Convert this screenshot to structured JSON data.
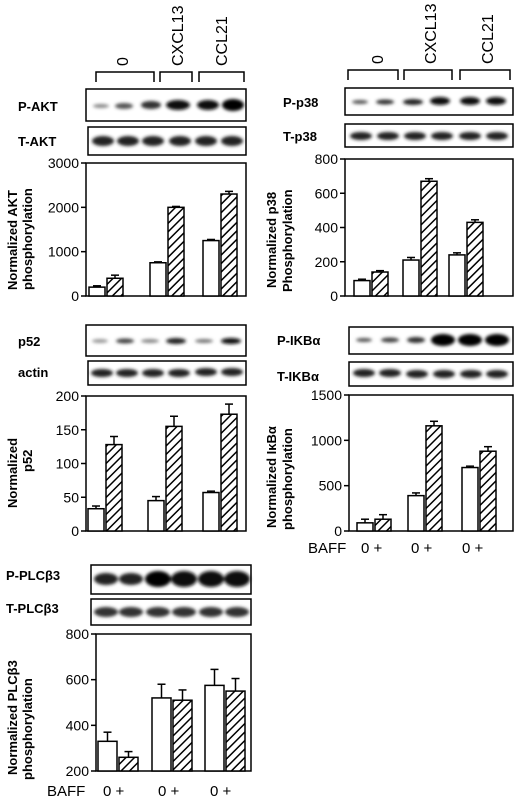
{
  "conditions": [
    "0",
    "CXCL13",
    "CCL21"
  ],
  "treatment_label": "BAFF",
  "treatment_ticks": [
    "0 +",
    "0 +",
    "0 +"
  ],
  "chart_data": [
    {
      "type": "bar",
      "id": "akt",
      "blots": [
        "P-AKT",
        "T-AKT"
      ],
      "ylabel": [
        "Normalized AKT",
        "phosphorylation"
      ],
      "categories": [
        "0",
        "CXCL13",
        "CCL21"
      ],
      "series": [
        {
          "values": [
            200,
            750,
            1250
          ],
          "errors": [
            30,
            20,
            25
          ]
        },
        {
          "values": [
            400,
            2000,
            2300
          ],
          "errors": [
            70,
            20,
            60
          ]
        }
      ],
      "ylim": [
        0,
        3000
      ],
      "yticks": [
        "0",
        "1000",
        "2000",
        "3000"
      ]
    },
    {
      "type": "bar",
      "id": "p38",
      "blots": [
        "P-p38",
        "T-p38"
      ],
      "ylabel": [
        "Normalized p38",
        "Phosphorylation"
      ],
      "categories": [
        "0",
        "CXCL13",
        "CCL21"
      ],
      "series": [
        {
          "values": [
            90,
            210,
            240
          ],
          "errors": [
            8,
            15,
            12
          ]
        },
        {
          "values": [
            140,
            670,
            430
          ],
          "errors": [
            8,
            15,
            15
          ]
        }
      ],
      "ylim": [
        0,
        800
      ],
      "yticks": [
        "0",
        "200",
        "400",
        "600",
        "800"
      ]
    },
    {
      "type": "bar",
      "id": "p52",
      "blots": [
        "p52",
        "actin"
      ],
      "ylabel": [
        "Normalized",
        "p52"
      ],
      "categories": [
        "0",
        "CXCL13",
        "CCL21"
      ],
      "series": [
        {
          "values": [
            33,
            45,
            57
          ],
          "errors": [
            4,
            6,
            2
          ]
        },
        {
          "values": [
            128,
            155,
            173
          ],
          "errors": [
            12,
            15,
            15
          ]
        }
      ],
      "ylim": [
        0,
        200
      ],
      "yticks": [
        "0",
        "50",
        "100",
        "150",
        "200"
      ]
    },
    {
      "type": "bar",
      "id": "ikba",
      "blots": [
        "P-IKBα",
        "T-IKBα"
      ],
      "ylabel": [
        "Normalized IκBα",
        "phosphorylation"
      ],
      "categories": [
        "0",
        "CXCL13",
        "CCL21"
      ],
      "series": [
        {
          "values": [
            90,
            390,
            700
          ],
          "errors": [
            40,
            30,
            15
          ]
        },
        {
          "values": [
            130,
            1160,
            880
          ],
          "errors": [
            50,
            50,
            50
          ]
        }
      ],
      "ylim": [
        0,
        1500
      ],
      "yticks": [
        "0",
        "500",
        "1000",
        "1500"
      ]
    },
    {
      "type": "bar",
      "id": "plc",
      "blots": [
        "P-PLCβ3",
        "T-PLCβ3"
      ],
      "ylabel": [
        "Normalized PLCβ3",
        "phosphorylation"
      ],
      "categories": [
        "0",
        "CXCL13",
        "CCL21"
      ],
      "series": [
        {
          "values": [
            330,
            520,
            575
          ],
          "errors": [
            40,
            60,
            70
          ]
        },
        {
          "values": [
            260,
            510,
            550
          ],
          "errors": [
            25,
            45,
            55
          ]
        }
      ],
      "ylim": [
        200,
        800
      ],
      "yticks": [
        "200",
        "400",
        "600",
        "800"
      ]
    }
  ]
}
